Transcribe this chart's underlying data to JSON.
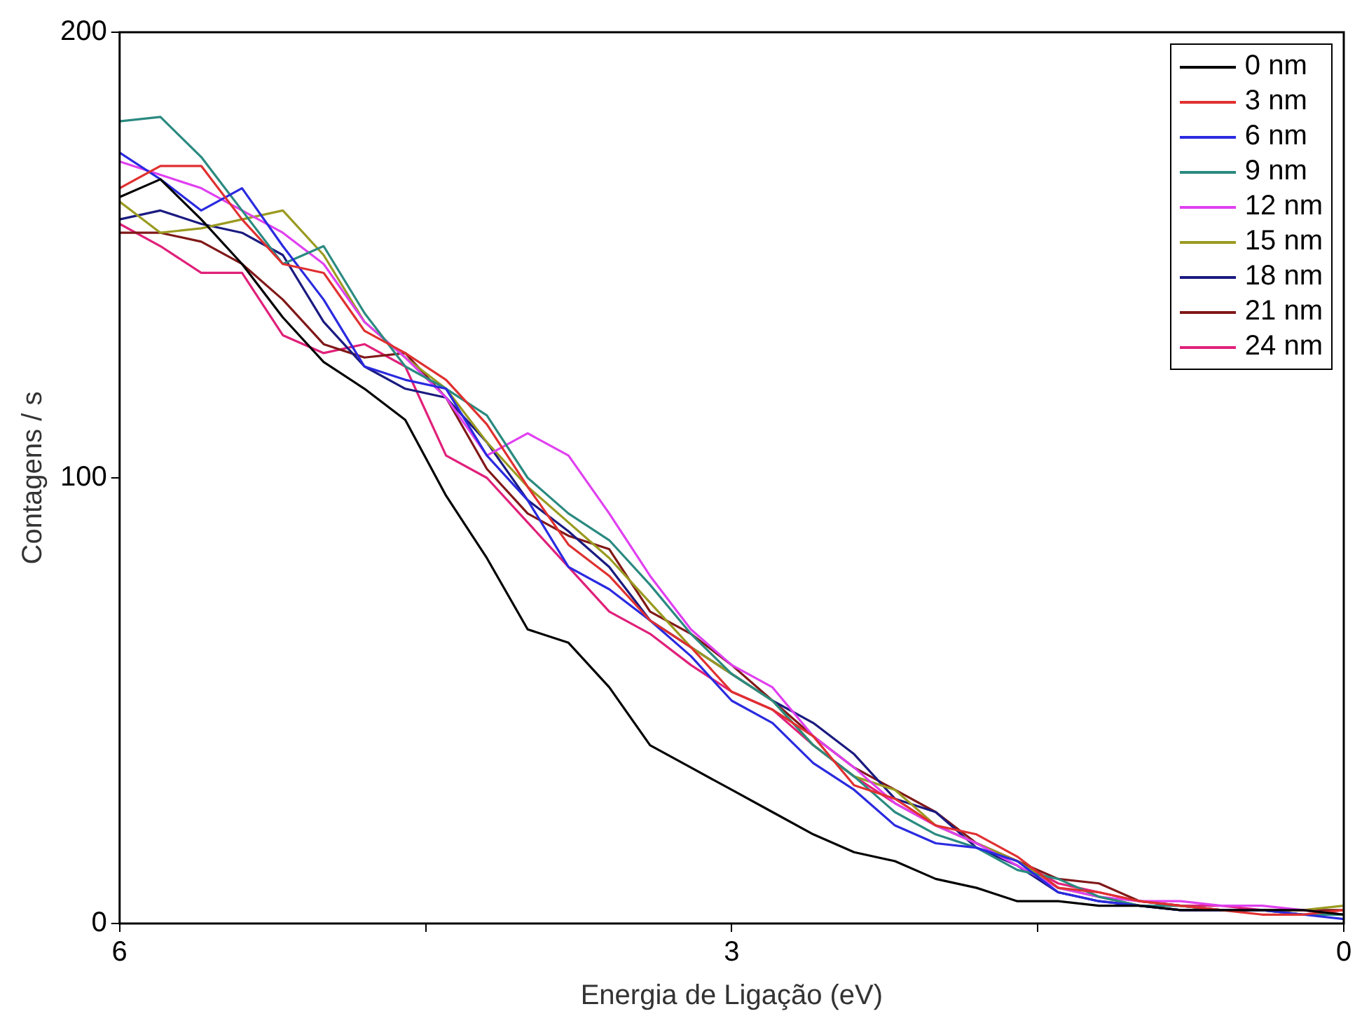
{
  "chart_data": {
    "type": "line",
    "xlabel": "Energia de Ligação (eV)",
    "ylabel": "Contagens / s",
    "xlim": [
      6,
      0
    ],
    "ylim": [
      0,
      200
    ],
    "xticks": [
      6,
      {
        "value": 4.5,
        "label": null
      },
      3,
      {
        "value": 1.5,
        "label": null
      },
      0
    ],
    "yticks": [
      0,
      100,
      200
    ],
    "grid": false,
    "legend": "top right",
    "marker": "none",
    "line_style": "solid",
    "x": [
      6,
      5.8,
      5.6,
      5.4,
      5.2,
      5.0,
      4.8,
      4.6,
      4.4,
      4.2,
      4.0,
      3.8,
      3.6,
      3.4,
      3.2,
      3.0,
      2.8,
      2.6,
      2.4,
      2.2,
      2.0,
      1.8,
      1.6,
      1.4,
      1.2,
      1.0,
      0.8,
      0.6,
      0.4,
      0.2,
      0
    ],
    "series": [
      {
        "name": "0 nm",
        "color": "#000000",
        "values": [
          163,
          167,
          158,
          148,
          136,
          126,
          120,
          113,
          96,
          82,
          66,
          63,
          53,
          40,
          35,
          30,
          25,
          20,
          16,
          14,
          10,
          8,
          5,
          5,
          4,
          4,
          3,
          3,
          3,
          3,
          2
        ]
      },
      {
        "name": "3 nm",
        "color": "#e03030",
        "values": [
          165,
          170,
          170,
          158,
          148,
          146,
          133,
          128,
          122,
          112,
          98,
          85,
          78,
          68,
          62,
          52,
          48,
          42,
          31,
          28,
          22,
          20,
          15,
          8,
          7,
          5,
          4,
          3,
          2,
          2,
          3
        ]
      },
      {
        "name": "6 nm",
        "color": "#2a2ae0",
        "values": [
          173,
          167,
          160,
          165,
          152,
          140,
          125,
          122,
          120,
          105,
          95,
          80,
          75,
          68,
          60,
          50,
          45,
          36,
          30,
          22,
          18,
          17,
          14,
          7,
          5,
          4,
          3,
          3,
          3,
          2,
          1
        ]
      },
      {
        "name": "9 nm",
        "color": "#2a8a80",
        "values": [
          180,
          181,
          172,
          160,
          148,
          152,
          137,
          125,
          120,
          114,
          100,
          92,
          86,
          76,
          65,
          56,
          50,
          40,
          33,
          25,
          20,
          17,
          12,
          10,
          6,
          4,
          4,
          3,
          3,
          2,
          2
        ]
      },
      {
        "name": "12 nm",
        "color": "#e040f0",
        "values": [
          171,
          168,
          165,
          160,
          155,
          148,
          135,
          127,
          118,
          105,
          110,
          105,
          92,
          78,
          66,
          58,
          53,
          42,
          35,
          27,
          22,
          18,
          13,
          8,
          6,
          5,
          5,
          4,
          4,
          3,
          2
        ]
      },
      {
        "name": "15 nm",
        "color": "#9a9a20",
        "values": [
          162,
          155,
          156,
          158,
          160,
          150,
          135,
          127,
          120,
          108,
          98,
          90,
          82,
          72,
          62,
          56,
          50,
          40,
          33,
          30,
          22,
          18,
          14,
          8,
          6,
          4,
          4,
          3,
          3,
          3,
          4
        ]
      },
      {
        "name": "18 nm",
        "color": "#1a1a80",
        "values": [
          158,
          160,
          157,
          155,
          150,
          135,
          125,
          120,
          118,
          108,
          95,
          88,
          80,
          68,
          62,
          56,
          50,
          45,
          38,
          28,
          25,
          17,
          13,
          7,
          5,
          4,
          3,
          3,
          3,
          2,
          2
        ]
      },
      {
        "name": "21 nm",
        "color": "#801818",
        "values": [
          155,
          155,
          153,
          148,
          140,
          130,
          127,
          128,
          118,
          102,
          92,
          87,
          84,
          70,
          65,
          58,
          50,
          42,
          35,
          30,
          25,
          18,
          14,
          10,
          9,
          5,
          4,
          3,
          3,
          3,
          3
        ]
      },
      {
        "name": "24 nm",
        "color": "#e0207a",
        "values": [
          157,
          152,
          146,
          146,
          132,
          128,
          130,
          125,
          105,
          100,
          90,
          80,
          70,
          65,
          58,
          52,
          48,
          40,
          33,
          27,
          22,
          18,
          14,
          9,
          7,
          5,
          4,
          4,
          3,
          3,
          2
        ]
      }
    ]
  }
}
